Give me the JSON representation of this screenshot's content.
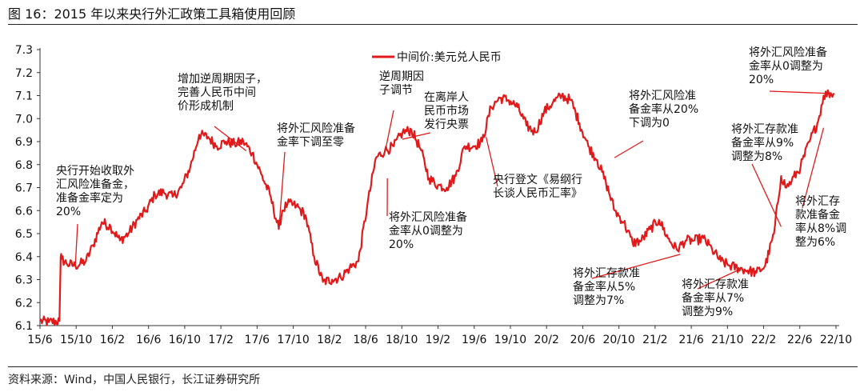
{
  "figure": {
    "title": "图 16：2015 年以来央行外汇政策工具箱使用回顾",
    "source": "资料来源：Wind，中国人民银行，长江证券研究所"
  },
  "colors": {
    "line": "#e01a1a",
    "axis": "#333333",
    "text": "#111111"
  },
  "chart_data": {
    "type": "line",
    "title": "2015 年以来央行外汇政策工具箱使用回顾",
    "xlabel": "",
    "ylabel": "",
    "ylim": [
      6.1,
      7.3
    ],
    "yticks": [
      "6.1",
      "6.2",
      "6.3",
      "6.4",
      "6.5",
      "6.6",
      "6.7",
      "6.8",
      "6.9",
      "7.0",
      "7.1",
      "7.2",
      "7.3"
    ],
    "xlim": [
      2015.417,
      2022.917
    ],
    "xtick_labels": [
      "15/6",
      "15/10",
      "16/2",
      "16/6",
      "16/10",
      "17/2",
      "17/6",
      "17/10",
      "18/2",
      "18/6",
      "18/10",
      "19/2",
      "19/6",
      "19/10",
      "20/2",
      "20/6",
      "20/10",
      "21/2",
      "21/6",
      "21/10",
      "22/2",
      "22/6",
      "22/10"
    ],
    "legend": {
      "label": "中间价:美元兑人民币",
      "position": "top-center"
    },
    "series": [
      {
        "name": "中间价:美元兑人民币",
        "x": [
          2015.417,
          2015.5,
          2015.6,
          2015.612,
          2015.622,
          2015.667,
          2015.75,
          2015.85,
          2015.917,
          2016.0,
          2016.083,
          2016.17,
          2016.25,
          2016.333,
          2016.417,
          2016.5,
          2016.583,
          2016.667,
          2016.75,
          2016.833,
          2016.917,
          2017.0,
          2017.083,
          2017.167,
          2017.25,
          2017.333,
          2017.417,
          2017.5,
          2017.583,
          2017.667,
          2017.7,
          2017.75,
          2017.833,
          2017.917,
          2018.0,
          2018.083,
          2018.17,
          2018.25,
          2018.333,
          2018.417,
          2018.5,
          2018.583,
          2018.667,
          2018.75,
          2018.833,
          2018.917,
          2019.0,
          2019.083,
          2019.167,
          2019.25,
          2019.333,
          2019.417,
          2019.5,
          2019.583,
          2019.667,
          2019.75,
          2019.833,
          2019.917,
          2020.0,
          2020.083,
          2020.167,
          2020.25,
          2020.333,
          2020.417,
          2020.5,
          2020.583,
          2020.667,
          2020.75,
          2020.833,
          2020.917,
          2021.0,
          2021.083,
          2021.167,
          2021.25,
          2021.333,
          2021.417,
          2021.5,
          2021.583,
          2021.667,
          2021.75,
          2021.833,
          2021.917,
          2022.0,
          2022.083,
          2022.167,
          2022.25,
          2022.333,
          2022.4,
          2022.45,
          2022.5,
          2022.583,
          2022.667,
          2022.75,
          2022.8,
          2022.85,
          2022.9
        ],
        "values": [
          6.12,
          6.115,
          6.12,
          6.4,
          6.39,
          6.37,
          6.36,
          6.38,
          6.45,
          6.55,
          6.53,
          6.47,
          6.5,
          6.56,
          6.6,
          6.67,
          6.68,
          6.66,
          6.7,
          6.79,
          6.93,
          6.92,
          6.88,
          6.9,
          6.89,
          6.9,
          6.85,
          6.76,
          6.67,
          6.52,
          6.6,
          6.63,
          6.62,
          6.58,
          6.4,
          6.29,
          6.3,
          6.31,
          6.35,
          6.38,
          6.62,
          6.83,
          6.86,
          6.88,
          6.94,
          6.95,
          6.87,
          6.74,
          6.71,
          6.7,
          6.75,
          6.88,
          6.88,
          6.9,
          7.05,
          7.09,
          7.08,
          7.05,
          6.97,
          6.94,
          7.03,
          7.07,
          7.1,
          7.08,
          6.98,
          6.88,
          6.82,
          6.72,
          6.6,
          6.55,
          6.46,
          6.47,
          6.52,
          6.56,
          6.48,
          6.43,
          6.47,
          6.47,
          6.48,
          6.43,
          6.38,
          6.36,
          6.35,
          6.34,
          6.33,
          6.36,
          6.5,
          6.75,
          6.7,
          6.73,
          6.79,
          6.9,
          6.99,
          7.1,
          7.11,
          7.11
        ]
      }
    ],
    "annotations": [
      {
        "id": "a1",
        "lines": [
          "央行开始收取外",
          "汇风险准备金，",
          "准备金率定为",
          "20%"
        ],
        "x": 2015.75,
        "y": 6.36
      },
      {
        "id": "a2",
        "lines": [
          "增加逆周期因子，",
          "完善人民币中间",
          "价形成机制"
        ],
        "x": 2017.36,
        "y": 6.86
      },
      {
        "id": "a3",
        "lines": [
          "将外汇风险准备",
          "金率下调至零"
        ],
        "x": 2017.67,
        "y": 6.53
      },
      {
        "id": "a4",
        "lines": [
          "逆周期因",
          "子调节"
        ],
        "x": 2018.67,
        "y": 6.86
      },
      {
        "id": "a5",
        "lines": [
          "在离岸人",
          "民币市场",
          "发行央票"
        ],
        "x": 2018.83,
        "y": 6.91
      },
      {
        "id": "a6",
        "lines": [
          "将外汇风险准备",
          "金率从0调整为",
          "20%"
        ],
        "x": 2018.69,
        "y": 6.74
      },
      {
        "id": "a7",
        "lines": [
          "央行登文《易纲行",
          "长谈人民币汇率》"
        ],
        "x": 2019.62,
        "y": 6.92
      },
      {
        "id": "a8",
        "lines": [
          "将外汇风险准",
          "备金率从20%",
          "下调为0"
        ],
        "x": 2020.83,
        "y": 6.83
      },
      {
        "id": "a9",
        "lines": [
          "将外汇存款准",
          "备金率从5%",
          "调整为7%"
        ],
        "x": 2021.45,
        "y": 6.41
      },
      {
        "id": "a10",
        "lines": [
          "将外汇存款准",
          "备金率从7%",
          "调整为9%"
        ],
        "x": 2021.99,
        "y": 6.34
      },
      {
        "id": "a11",
        "lines": [
          "将外汇风险准备",
          "金率从0调整为",
          "20%"
        ],
        "x": 2022.82,
        "y": 7.11
      },
      {
        "id": "a12",
        "lines": [
          "将外汇存款准",
          "备金率从9%",
          "调整为8%"
        ],
        "x": 2022.4,
        "y": 6.53
      },
      {
        "id": "a13",
        "lines": [
          "将外汇存",
          "款准备金",
          "率从8%调",
          "整为6%"
        ],
        "x": 2022.8,
        "y": 6.96
      }
    ]
  }
}
